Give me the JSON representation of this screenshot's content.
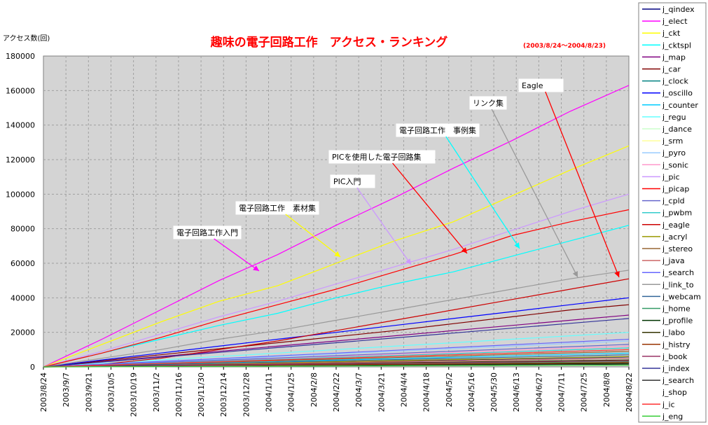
{
  "chart_data": {
    "type": "line",
    "title": "趣味の電子回路工作　アクセス・ランキング",
    "date_range": "(2003/8/24～2004/8/23)",
    "ylabel": "アクセス数(回)",
    "xlabel": "",
    "ylim": [
      0,
      180000
    ],
    "yticks": [
      0,
      20000,
      40000,
      60000,
      80000,
      100000,
      120000,
      140000,
      160000,
      180000
    ],
    "grid": true,
    "legend_position": "right",
    "x_ticks": [
      "2003/8/24",
      "2003/9/7",
      "2003/9/21",
      "2003/10/5",
      "2003/10/19",
      "2003/11/2",
      "2003/11/16",
      "2003/11/30",
      "2003/12/14",
      "2003/12/28",
      "2004/1/11",
      "2004/1/25",
      "2004/2/8",
      "2004/2/22",
      "2004/3/7",
      "2004/3/21",
      "2004/4/4",
      "2004/4/18",
      "2004/5/2",
      "2004/5/16",
      "2004/5/30",
      "2004/6/13",
      "2004/6/27",
      "2004/7/11",
      "2004/7/25",
      "2004/8/8",
      "2004/8/22"
    ],
    "x_range": [
      "2003/8/24",
      "2004/8/23"
    ],
    "series": [
      {
        "name": "j_qindex",
        "color": "#000080",
        "values": [
          0,
          500,
          1000,
          1600,
          2200,
          2800,
          3400,
          4000,
          4600,
          5200,
          5800
        ]
      },
      {
        "name": "j_elect",
        "color": "#ff00ff",
        "values": [
          0,
          16000,
          33000,
          50000,
          65000,
          82000,
          98000,
          115000,
          131000,
          148000,
          163000
        ]
      },
      {
        "name": "j_ckt",
        "color": "#ffff00",
        "values": [
          0,
          13000,
          26000,
          38000,
          47000,
          60000,
          73000,
          84000,
          99000,
          114000,
          128000
        ]
      },
      {
        "name": "j_cktspl",
        "color": "#00ffff",
        "values": [
          0,
          8000,
          16000,
          24000,
          31000,
          40000,
          48000,
          55000,
          64000,
          73000,
          82000
        ]
      },
      {
        "name": "j_map",
        "color": "#800080",
        "values": [
          0,
          3000,
          6000,
          9000,
          12000,
          15000,
          18000,
          21000,
          24000,
          27000,
          30000
        ]
      },
      {
        "name": "j_car",
        "color": "#800000",
        "values": [
          0,
          3500,
          7000,
          10500,
          14000,
          17500,
          21000,
          25000,
          29000,
          33000,
          36000
        ]
      },
      {
        "name": "j_clock",
        "color": "#008080",
        "values": [
          0,
          1000,
          2000,
          3000,
          4000,
          5000,
          6000,
          7000,
          8000,
          9000,
          10000
        ]
      },
      {
        "name": "j_oscillo",
        "color": "#0000ff",
        "values": [
          0,
          4000,
          8000,
          12000,
          16000,
          20000,
          24000,
          28000,
          32000,
          36000,
          40000
        ]
      },
      {
        "name": "j_counter",
        "color": "#00ccff",
        "values": [
          0,
          800,
          1600,
          2400,
          3200,
          4000,
          4800,
          5600,
          6400,
          7200,
          8000
        ]
      },
      {
        "name": "j_regu",
        "color": "#66ffff",
        "values": [
          0,
          2000,
          4000,
          6000,
          8000,
          10000,
          12000,
          14000,
          16000,
          18000,
          20000
        ]
      },
      {
        "name": "j_dance",
        "color": "#ccffcc",
        "values": [
          0,
          1000,
          2000,
          3000,
          4000,
          5000,
          6000,
          7000,
          8000,
          9000,
          10000
        ]
      },
      {
        "name": "j_srm",
        "color": "#ffff99",
        "values": [
          0,
          700,
          1400,
          2100,
          2800,
          3500,
          4200,
          4900,
          5600,
          6300,
          7000
        ]
      },
      {
        "name": "j_pyro",
        "color": "#99ccff",
        "values": [
          0,
          1500,
          3000,
          4500,
          6000,
          7500,
          9000,
          10500,
          12000,
          13500,
          15000
        ]
      },
      {
        "name": "j_sonic",
        "color": "#ff99cc",
        "values": [
          0,
          1200,
          2400,
          3600,
          4800,
          6000,
          7200,
          8400,
          9600,
          10800,
          12000
        ]
      },
      {
        "name": "j_pic",
        "color": "#cc99ff",
        "values": [
          0,
          9000,
          19000,
          29000,
          38000,
          48000,
          58000,
          68000,
          79000,
          90000,
          100000
        ]
      },
      {
        "name": "j_picap",
        "color": "#ff0000",
        "values": [
          0,
          8000,
          17000,
          27000,
          36000,
          45000,
          55000,
          65000,
          76000,
          84000,
          91000
        ]
      },
      {
        "name": "j_cpld",
        "color": "#6666cc",
        "values": [
          0,
          1300,
          2600,
          3900,
          5200,
          6500,
          7800,
          9100,
          10400,
          11700,
          13000
        ]
      },
      {
        "name": "j_pwbm",
        "color": "#33cccc",
        "values": [
          0,
          1100,
          2200,
          3300,
          4400,
          5500,
          6600,
          7700,
          8800,
          9900,
          11000
        ]
      },
      {
        "name": "j_eagle",
        "color": "#cc0000",
        "values": [
          0,
          1500,
          5000,
          10000,
          15000,
          21000,
          27000,
          33000,
          39000,
          45000,
          51000
        ]
      },
      {
        "name": "j_acryl",
        "color": "#999900",
        "values": [
          0,
          600,
          1200,
          1800,
          2400,
          3000,
          3600,
          4200,
          4800,
          5400,
          6000
        ]
      },
      {
        "name": "j_stereo",
        "color": "#996633",
        "values": [
          0,
          900,
          1800,
          2700,
          3600,
          4500,
          5400,
          6300,
          7200,
          8100,
          9000
        ]
      },
      {
        "name": "j_java",
        "color": "#cc6666",
        "values": [
          0,
          500,
          1000,
          1500,
          2000,
          2500,
          3000,
          3500,
          4000,
          4500,
          5000
        ]
      },
      {
        "name": "j_search",
        "color": "#6666ff",
        "values": [
          0,
          1600,
          3200,
          4800,
          6400,
          8000,
          9600,
          11200,
          12800,
          14400,
          16000
        ]
      },
      {
        "name": "j_link_to",
        "color": "#999999",
        "values": [
          0,
          5000,
          10000,
          16000,
          21000,
          27000,
          33000,
          39000,
          45000,
          51000,
          56000
        ]
      },
      {
        "name": "j_webcam",
        "color": "#336699",
        "values": [
          0,
          700,
          1400,
          2100,
          2800,
          3500,
          4200,
          4900,
          5600,
          6300,
          7000
        ]
      },
      {
        "name": "j_home",
        "color": "#339966",
        "values": [
          0,
          300,
          600,
          900,
          1200,
          1500,
          1800,
          2100,
          2400,
          2700,
          3000
        ]
      },
      {
        "name": "j_profile",
        "color": "#003300",
        "values": [
          0,
          200,
          400,
          600,
          800,
          1000,
          1200,
          1400,
          1600,
          1800,
          2000
        ]
      },
      {
        "name": "j_labo",
        "color": "#333300",
        "values": [
          0,
          400,
          800,
          1200,
          1600,
          2000,
          2400,
          2800,
          3200,
          3600,
          4000
        ]
      },
      {
        "name": "j_histry",
        "color": "#993300",
        "values": [
          0,
          250,
          500,
          750,
          1000,
          1250,
          1500,
          1750,
          2000,
          2250,
          2500
        ]
      },
      {
        "name": "j_book",
        "color": "#993366",
        "values": [
          0,
          350,
          700,
          1050,
          1400,
          1750,
          2100,
          2450,
          2800,
          3150,
          3500
        ]
      },
      {
        "name": "j_index",
        "color": "#333399",
        "values": [
          0,
          2800,
          5600,
          8400,
          11200,
          14000,
          16800,
          19600,
          22400,
          25200,
          28000
        ]
      },
      {
        "name": "j_search",
        "color": "#333333",
        "values": [
          0,
          150,
          300,
          450,
          600,
          750,
          900,
          1050,
          1200,
          1350,
          1500
        ]
      },
      {
        "name": "j_shop",
        "color": "#ffffff",
        "values": [
          0,
          100,
          200,
          300,
          400,
          500,
          600,
          700,
          800,
          900,
          1000
        ]
      },
      {
        "name": "j_ic",
        "color": "#ff3333",
        "values": [
          0,
          1000,
          2000,
          3000,
          4000,
          5000,
          6000,
          7000,
          8000,
          9000,
          10000
        ]
      },
      {
        "name": "j_eng",
        "color": "#33cc33",
        "values": [
          0,
          100,
          200,
          300,
          400,
          500,
          600,
          700,
          800,
          900,
          1000
        ]
      }
    ],
    "annotations": [
      {
        "text": "Eagle",
        "target_series": "j_eagle"
      },
      {
        "text": "リンク集",
        "target_series": "j_link_to"
      },
      {
        "text": "電子回路工作　事例集",
        "target_series": "j_cktspl"
      },
      {
        "text": "PICを使用した電子回路集",
        "target_series": "j_picap"
      },
      {
        "text": "PIC入門",
        "target_series": "j_pic"
      },
      {
        "text": "電子回路工作　素材集",
        "target_series": "j_ckt"
      },
      {
        "text": "電子回路工作入門",
        "target_series": "j_elect"
      }
    ]
  }
}
